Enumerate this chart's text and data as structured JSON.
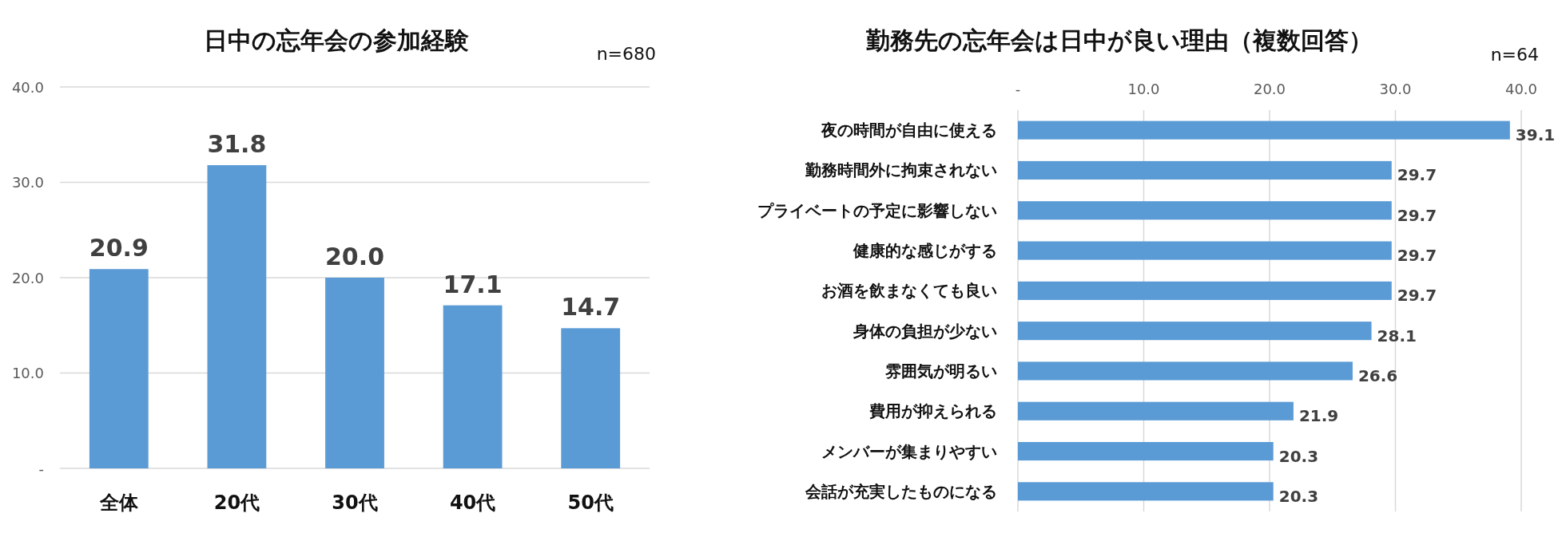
{
  "chart_data": [
    {
      "type": "bar",
      "title": "日中の忘年会の参加経験",
      "annotations": [
        "n=680"
      ],
      "categories": [
        "全体",
        "20代",
        "30代",
        "40代",
        "50代"
      ],
      "values": [
        20.9,
        31.8,
        20.0,
        17.1,
        14.7
      ],
      "value_labels": [
        "20.9",
        "31.8",
        "20.0",
        "17.1",
        "14.7"
      ],
      "color": "#5b9bd5",
      "ylim": [
        0,
        40
      ],
      "yticks": [
        {
          "value": 0,
          "label": "-"
        },
        {
          "value": 10,
          "label": "10.0"
        },
        {
          "value": 20,
          "label": "20.0"
        },
        {
          "value": 30,
          "label": "30.0"
        },
        {
          "value": 40,
          "label": "40.0"
        }
      ],
      "grid": "y"
    },
    {
      "type": "bar",
      "orientation": "horizontal",
      "title": "勤務先の忘年会は日中が良い理由（複数回答）",
      "annotations": [
        "n=64"
      ],
      "categories": [
        "夜の時間が自由に使える",
        "勤務時間外に拘束されない",
        "プライベートの予定に影響しない",
        "健康的な感じがする",
        "お酒を飲まなくても良い",
        "身体の負担が少ない",
        "雰囲気が明るい",
        "費用が抑えられる",
        "メンバーが集まりやすい",
        "会話が充実したものになる"
      ],
      "values": [
        39.1,
        29.7,
        29.7,
        29.7,
        29.7,
        28.1,
        26.6,
        21.9,
        20.3,
        20.3
      ],
      "data_labels": true,
      "color": "#5b9bd5",
      "xlim": [
        0,
        40
      ],
      "xticks": [
        {
          "value": 0,
          "label": "-"
        },
        {
          "value": 10,
          "label": "10.0"
        },
        {
          "value": 20,
          "label": "20.0"
        },
        {
          "value": 30,
          "label": "30.0"
        },
        {
          "value": 40,
          "label": "40.0"
        }
      ],
      "grid": "x"
    }
  ]
}
